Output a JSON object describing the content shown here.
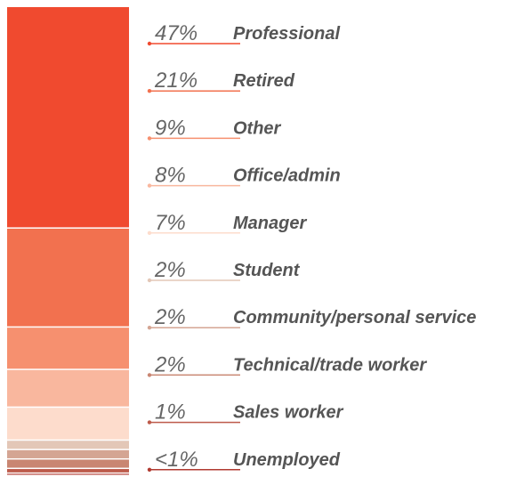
{
  "chart_data": {
    "type": "stacked-column",
    "categories": [
      "Professional",
      "Retired",
      "Other",
      "Office/admin",
      "Manager",
      "Student",
      "Community/personal service",
      "Technical/trade worker",
      "Sales worker",
      "Unemployed"
    ],
    "values": [
      47,
      21,
      9,
      8,
      7,
      2,
      2,
      2,
      1,
      0.5
    ],
    "value_labels": [
      "47%",
      "21%",
      "9%",
      "8%",
      "7%",
      "2%",
      "2%",
      "2%",
      "1%",
      "<1%"
    ],
    "colors": [
      "#f04a2f",
      "#f2714f",
      "#f6906f",
      "#f9b79e",
      "#fddccc",
      "#e3c7b7",
      "#d4a593",
      "#c98672",
      "#bd5a4a",
      "#b03a30"
    ]
  }
}
